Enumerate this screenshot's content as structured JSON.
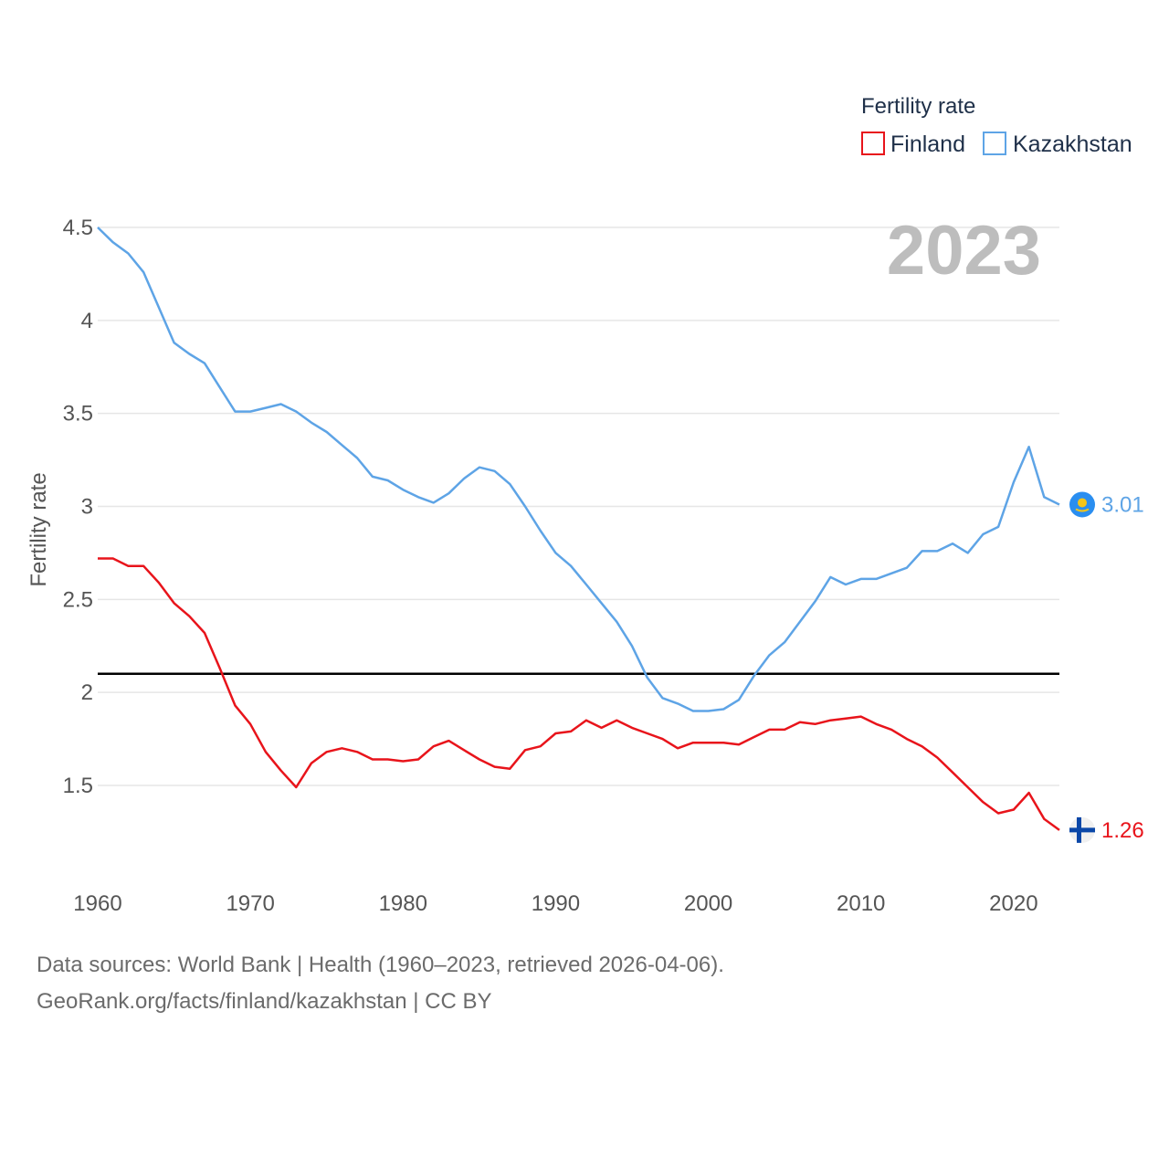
{
  "chart_data": {
    "type": "line",
    "legend_title": "Fertility rate",
    "ylabel": "Fertility rate",
    "year_label": "2023",
    "xlim": [
      1960,
      2023
    ],
    "ylim": [
      1.1,
      4.5
    ],
    "x_ticks": [
      1960,
      1970,
      1980,
      1990,
      2000,
      2010,
      2020
    ],
    "y_ticks": [
      1.5,
      2,
      2.5,
      3,
      3.5,
      4,
      4.5
    ],
    "y_tick_labels": [
      "1.5",
      "2",
      "2.5",
      "3",
      "3.5",
      "4",
      "4.5"
    ],
    "x_tick_labels": [
      "1960",
      "1970",
      "1980",
      "1990",
      "2000",
      "2010",
      "2020"
    ],
    "reference_line": 2.1,
    "x": [
      1960,
      1961,
      1962,
      1963,
      1964,
      1965,
      1966,
      1967,
      1968,
      1969,
      1970,
      1971,
      1972,
      1973,
      1974,
      1975,
      1976,
      1977,
      1978,
      1979,
      1980,
      1981,
      1982,
      1983,
      1984,
      1985,
      1986,
      1987,
      1988,
      1989,
      1990,
      1991,
      1992,
      1993,
      1994,
      1995,
      1996,
      1997,
      1998,
      1999,
      2000,
      2001,
      2002,
      2003,
      2004,
      2005,
      2006,
      2007,
      2008,
      2009,
      2010,
      2011,
      2012,
      2013,
      2014,
      2015,
      2016,
      2017,
      2018,
      2019,
      2020,
      2021,
      2022,
      2023
    ],
    "series": [
      {
        "name": "Finland",
        "color": "#e8141b",
        "end_label": "1.26",
        "values": [
          2.72,
          2.72,
          2.68,
          2.68,
          2.59,
          2.48,
          2.41,
          2.32,
          2.13,
          1.93,
          1.83,
          1.68,
          1.58,
          1.49,
          1.62,
          1.68,
          1.7,
          1.68,
          1.64,
          1.64,
          1.63,
          1.64,
          1.71,
          1.74,
          1.69,
          1.64,
          1.6,
          1.59,
          1.69,
          1.71,
          1.78,
          1.79,
          1.85,
          1.81,
          1.85,
          1.81,
          1.78,
          1.75,
          1.7,
          1.73,
          1.73,
          1.73,
          1.72,
          1.76,
          1.8,
          1.8,
          1.84,
          1.83,
          1.85,
          1.86,
          1.87,
          1.83,
          1.8,
          1.75,
          1.71,
          1.65,
          1.57,
          1.49,
          1.41,
          1.35,
          1.37,
          1.46,
          1.32,
          1.26
        ]
      },
      {
        "name": "Kazakhstan",
        "color": "#5ea4e6",
        "end_label": "3.01",
        "values": [
          4.5,
          4.42,
          4.36,
          4.26,
          4.07,
          3.88,
          3.82,
          3.77,
          3.64,
          3.51,
          3.51,
          3.53,
          3.55,
          3.51,
          3.45,
          3.4,
          3.33,
          3.26,
          3.16,
          3.14,
          3.09,
          3.05,
          3.02,
          3.07,
          3.15,
          3.21,
          3.19,
          3.12,
          3.0,
          2.87,
          2.75,
          2.68,
          2.58,
          2.48,
          2.38,
          2.25,
          2.08,
          1.97,
          1.94,
          1.9,
          1.9,
          1.91,
          1.96,
          2.09,
          2.2,
          2.27,
          2.38,
          2.49,
          2.62,
          2.58,
          2.61,
          2.61,
          2.64,
          2.67,
          2.76,
          2.76,
          2.8,
          2.75,
          2.85,
          2.89,
          3.13,
          3.32,
          3.05,
          3.01
        ]
      }
    ]
  },
  "source": {
    "line1": "Data sources: World Bank | Health (1960–2023, retrieved 2026-04-06).",
    "line2": "GeoRank.org/facts/finland/kazakhstan | CC BY"
  }
}
